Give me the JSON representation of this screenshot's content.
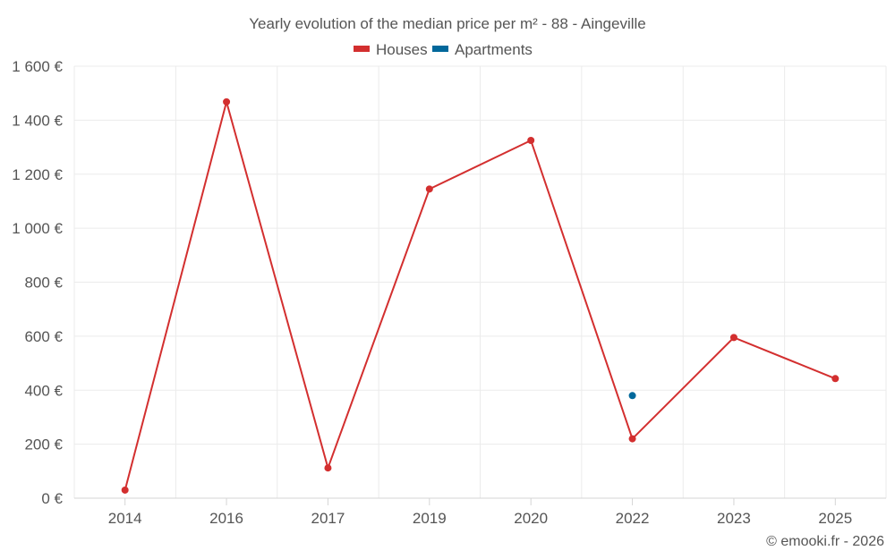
{
  "chart_data": {
    "type": "line",
    "title": "Yearly evolution of the median price per m² - 88 - Aingeville",
    "categories": [
      "2014",
      "2016",
      "2017",
      "2019",
      "2020",
      "2022",
      "2023",
      "2025"
    ],
    "series": [
      {
        "name": "Houses",
        "color": "#d32f2f",
        "values": [
          30,
          1468,
          112,
          1145,
          1325,
          220,
          595,
          443
        ]
      },
      {
        "name": "Apartments",
        "color": "#01689b",
        "values": [
          null,
          null,
          null,
          null,
          null,
          380,
          null,
          null
        ]
      }
    ],
    "ylim": [
      0,
      1600
    ],
    "yticks": [
      0,
      200,
      400,
      600,
      800,
      1000,
      1200,
      1400,
      1600
    ],
    "ytick_labels": [
      "0 €",
      "200 €",
      "400 €",
      "600 €",
      "800 €",
      "1 000 €",
      "1 200 €",
      "1 400 €",
      "1 600 €"
    ],
    "grid": true,
    "legend_position": "top-center"
  },
  "credit": "© emooki.fr - 2026"
}
